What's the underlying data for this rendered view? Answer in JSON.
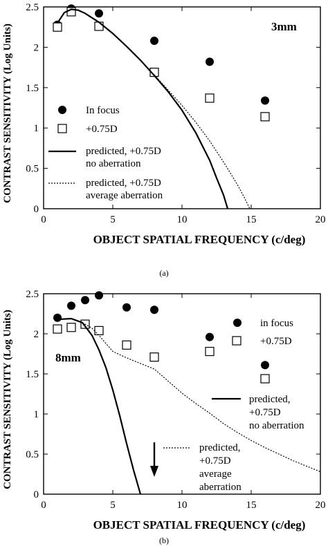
{
  "chart_data": [
    {
      "type": "scatter",
      "panel_label": "(a)",
      "panel_tag": "3mm",
      "xlabel": "OBJECT SPATIAL FREQUENCY (c/deg)",
      "ylabel": "CONTRAST SENSITIVITY (Log Units)",
      "xlim": [
        0,
        20
      ],
      "ylim": [
        0,
        2.5
      ],
      "xticks": [
        0,
        5,
        10,
        15,
        20
      ],
      "yticks": [
        0,
        0.5,
        1,
        1.5,
        2,
        2.5
      ],
      "legend_position": "left",
      "series": [
        {
          "name": "In focus",
          "kind": "points",
          "marker": "filled-circle",
          "x": [
            1,
            2,
            4,
            8,
            12,
            16
          ],
          "y": [
            2.28,
            2.48,
            2.42,
            2.08,
            1.82,
            1.34
          ]
        },
        {
          "name": "+0.75D",
          "kind": "points",
          "marker": "open-square",
          "x": [
            1,
            2,
            4,
            8,
            12,
            16
          ],
          "y": [
            2.25,
            2.44,
            2.26,
            1.69,
            1.37,
            1.14
          ]
        },
        {
          "name": "predicted, +0.75D",
          "name2": "no aberration",
          "kind": "line",
          "dash": "solid",
          "x": [
            1,
            1.5,
            2,
            2.5,
            3,
            4,
            5,
            6,
            7,
            8,
            9,
            10,
            11,
            12,
            12.5,
            13,
            13.3
          ],
          "y": [
            2.3,
            2.43,
            2.47,
            2.46,
            2.42,
            2.31,
            2.17,
            2.01,
            1.84,
            1.65,
            1.45,
            1.22,
            0.94,
            0.6,
            0.38,
            0.17,
            0
          ]
        },
        {
          "name": "predicted, +0.75D",
          "name2": "average aberration",
          "kind": "line",
          "dash": "dotted",
          "x": [
            8,
            9,
            10,
            11,
            12,
            13,
            14,
            14.5,
            14.9
          ],
          "y": [
            1.66,
            1.47,
            1.28,
            1.07,
            0.84,
            0.58,
            0.3,
            0.14,
            0
          ]
        }
      ]
    },
    {
      "type": "scatter",
      "panel_label": "(b)",
      "panel_tag": "8mm",
      "xlabel": "OBJECT SPATIAL FREQUENCY (c/deg)",
      "ylabel": "CONTRAST SENSITIVITY (Log Units)",
      "xlim": [
        0,
        20
      ],
      "ylim": [
        0,
        2.5
      ],
      "xticks": [
        0,
        5,
        10,
        15,
        20
      ],
      "yticks": [
        0,
        0.5,
        1,
        1.5,
        2,
        2.5
      ],
      "legend_position": "right",
      "arrow_at_x": 8,
      "series": [
        {
          "name": "in focus",
          "kind": "points",
          "marker": "filled-circle",
          "x": [
            1,
            2,
            3,
            4,
            6,
            8,
            12,
            16
          ],
          "y": [
            2.2,
            2.35,
            2.42,
            2.48,
            2.33,
            2.3,
            1.96,
            1.61
          ]
        },
        {
          "name": "+0.75D",
          "kind": "points",
          "marker": "open-square",
          "x": [
            1,
            2,
            3,
            4,
            6,
            8,
            12,
            16
          ],
          "y": [
            2.06,
            2.08,
            2.12,
            2.04,
            1.86,
            1.71,
            1.78,
            1.44
          ]
        },
        {
          "name": "predicted,",
          "name2": "+0.75D",
          "name3": "no aberration",
          "kind": "line",
          "dash": "solid",
          "x": [
            1,
            2,
            2.8,
            3.5,
            4,
            4.5,
            5,
            5.5,
            6,
            6.5,
            6.8,
            7
          ],
          "y": [
            2.18,
            2.19,
            2.14,
            1.98,
            1.8,
            1.58,
            1.3,
            0.98,
            0.63,
            0.3,
            0.12,
            0
          ]
        },
        {
          "name": "predicted,",
          "name2": "+0.75D",
          "name3": "average",
          "name4": "aberration",
          "kind": "line",
          "dash": "dotted",
          "x": [
            2.8,
            3.5,
            4,
            4.5,
            5,
            6,
            7,
            8,
            9,
            10,
            11,
            12,
            13,
            14,
            15,
            16,
            17,
            18,
            19,
            20
          ],
          "y": [
            2.14,
            2.07,
            1.98,
            1.88,
            1.78,
            1.7,
            1.63,
            1.56,
            1.41,
            1.26,
            1.13,
            1.01,
            0.88,
            0.77,
            0.67,
            0.58,
            0.5,
            0.42,
            0.35,
            0.28
          ]
        }
      ]
    }
  ]
}
